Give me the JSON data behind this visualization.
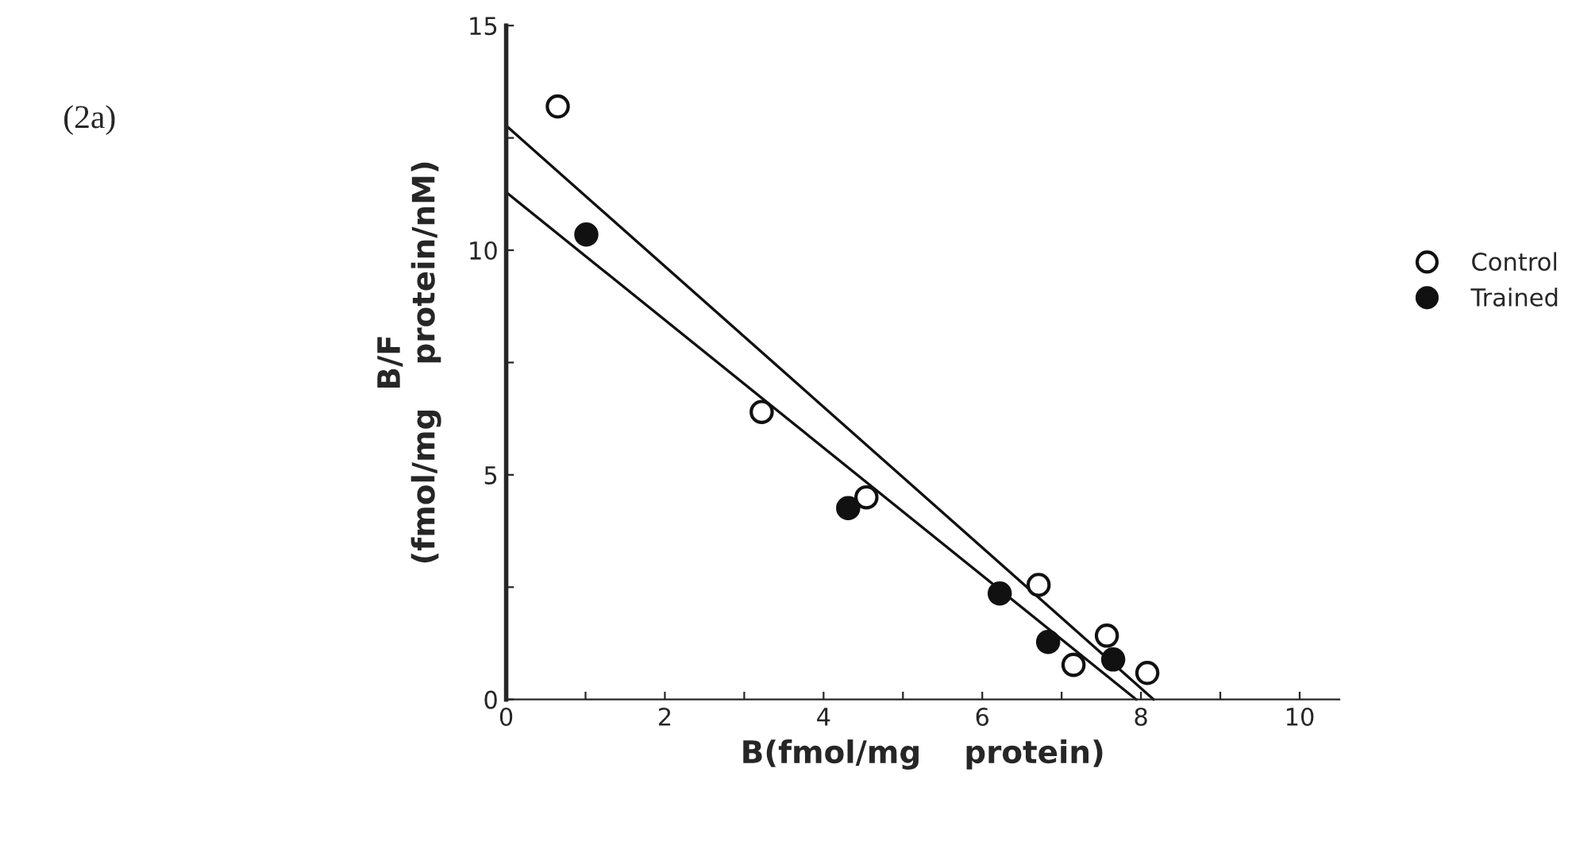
{
  "chart_data": {
    "type": "scatter",
    "xlabel": "B(fmol/mg    protein)",
    "ylabel": "B/F\n(fmol/mg    protein/nM)",
    "annotations": [
      "(2a)"
    ],
    "xlim": [
      0,
      10.5
    ],
    "ylim": [
      0,
      15
    ],
    "xticks": [
      0,
      {
        "value": 1,
        "label": null
      },
      2,
      {
        "value": 3,
        "label": null
      },
      4,
      {
        "value": 5,
        "label": null
      },
      6,
      {
        "value": 7,
        "label": null
      },
      8,
      {
        "value": 9,
        "label": null
      },
      10
    ],
    "yticks": [
      0,
      {
        "value": 2.5,
        "label": null
      },
      5,
      {
        "value": 7.5,
        "label": null
      },
      10,
      {
        "value": 12.5,
        "label": null
      },
      15
    ],
    "grid": false,
    "legend": "right",
    "series": [
      {
        "name": "Control",
        "color": "#ffffff",
        "marker": "circle",
        "x": [
          0.65,
          3.22,
          4.54,
          6.71,
          7.57,
          7.15,
          8.08
        ],
        "values": [
          13.2,
          6.4,
          4.5,
          2.55,
          1.42,
          0.77,
          0.59
        ]
      },
      {
        "name": "Trained",
        "color": "#111111",
        "marker": "circle",
        "x": [
          1.01,
          4.31,
          6.22,
          6.83,
          7.65
        ],
        "values": [
          10.35,
          4.26,
          2.36,
          1.28,
          0.89
        ]
      },
      {
        "type": "line",
        "color": "#111111",
        "x": [
          0,
          8.16
        ],
        "values": [
          12.77,
          0
        ]
      },
      {
        "type": "line",
        "color": "#111111",
        "x": [
          0,
          7.94
        ],
        "values": [
          11.29,
          0
        ]
      }
    ]
  }
}
